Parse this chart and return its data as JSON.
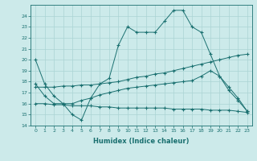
{
  "xlabel": "Humidex (Indice chaleur)",
  "bg_color": "#cceaea",
  "grid_color": "#aad4d4",
  "line_color": "#1a7070",
  "xlim": [
    -0.5,
    23.5
  ],
  "ylim": [
    14,
    25
  ],
  "yticks": [
    14,
    15,
    16,
    17,
    18,
    19,
    20,
    21,
    22,
    23,
    24
  ],
  "xticks": [
    0,
    1,
    2,
    3,
    4,
    5,
    6,
    7,
    8,
    9,
    10,
    11,
    12,
    13,
    14,
    15,
    16,
    17,
    18,
    19,
    20,
    21,
    22,
    23
  ],
  "series": [
    {
      "x": [
        0,
        1,
        2,
        3,
        4,
        5,
        6,
        7,
        8,
        9,
        10,
        11,
        12,
        13,
        14,
        15,
        16,
        17,
        18,
        19,
        20,
        21,
        22,
        23
      ],
      "y": [
        20.0,
        17.8,
        16.7,
        16.0,
        15.0,
        14.5,
        16.5,
        17.8,
        18.3,
        21.3,
        23.0,
        22.5,
        22.5,
        22.5,
        23.5,
        24.5,
        24.5,
        23.0,
        22.5,
        20.5,
        18.5,
        17.2,
        16.3,
        15.3
      ]
    },
    {
      "x": [
        0,
        1,
        2,
        3,
        4,
        5,
        6,
        7,
        8,
        9,
        10,
        11,
        12,
        13,
        14,
        15,
        16,
        17,
        18,
        19,
        20,
        21,
        22,
        23
      ],
      "y": [
        17.5,
        17.5,
        17.5,
        17.6,
        17.6,
        17.7,
        17.7,
        17.8,
        17.9,
        18.0,
        18.2,
        18.4,
        18.5,
        18.7,
        18.8,
        19.0,
        19.2,
        19.4,
        19.6,
        19.8,
        20.0,
        20.2,
        20.4,
        20.5
      ]
    },
    {
      "x": [
        0,
        1,
        2,
        3,
        4,
        5,
        6,
        7,
        8,
        9,
        10,
        11,
        12,
        13,
        14,
        15,
        16,
        17,
        18,
        19,
        20,
        21,
        22,
        23
      ],
      "y": [
        16.0,
        16.0,
        15.9,
        15.9,
        15.8,
        15.8,
        15.8,
        15.7,
        15.7,
        15.6,
        15.6,
        15.6,
        15.6,
        15.6,
        15.6,
        15.5,
        15.5,
        15.5,
        15.5,
        15.4,
        15.4,
        15.4,
        15.3,
        15.2
      ]
    },
    {
      "x": [
        0,
        1,
        2,
        3,
        4,
        5,
        6,
        7,
        8,
        9,
        10,
        11,
        12,
        13,
        14,
        15,
        16,
        17,
        18,
        19,
        20,
        21,
        22,
        23
      ],
      "y": [
        17.8,
        16.7,
        16.0,
        16.0,
        16.0,
        16.3,
        16.5,
        16.8,
        17.0,
        17.2,
        17.4,
        17.5,
        17.6,
        17.7,
        17.8,
        17.9,
        18.0,
        18.1,
        18.5,
        19.0,
        18.5,
        17.5,
        16.5,
        15.3
      ]
    }
  ]
}
